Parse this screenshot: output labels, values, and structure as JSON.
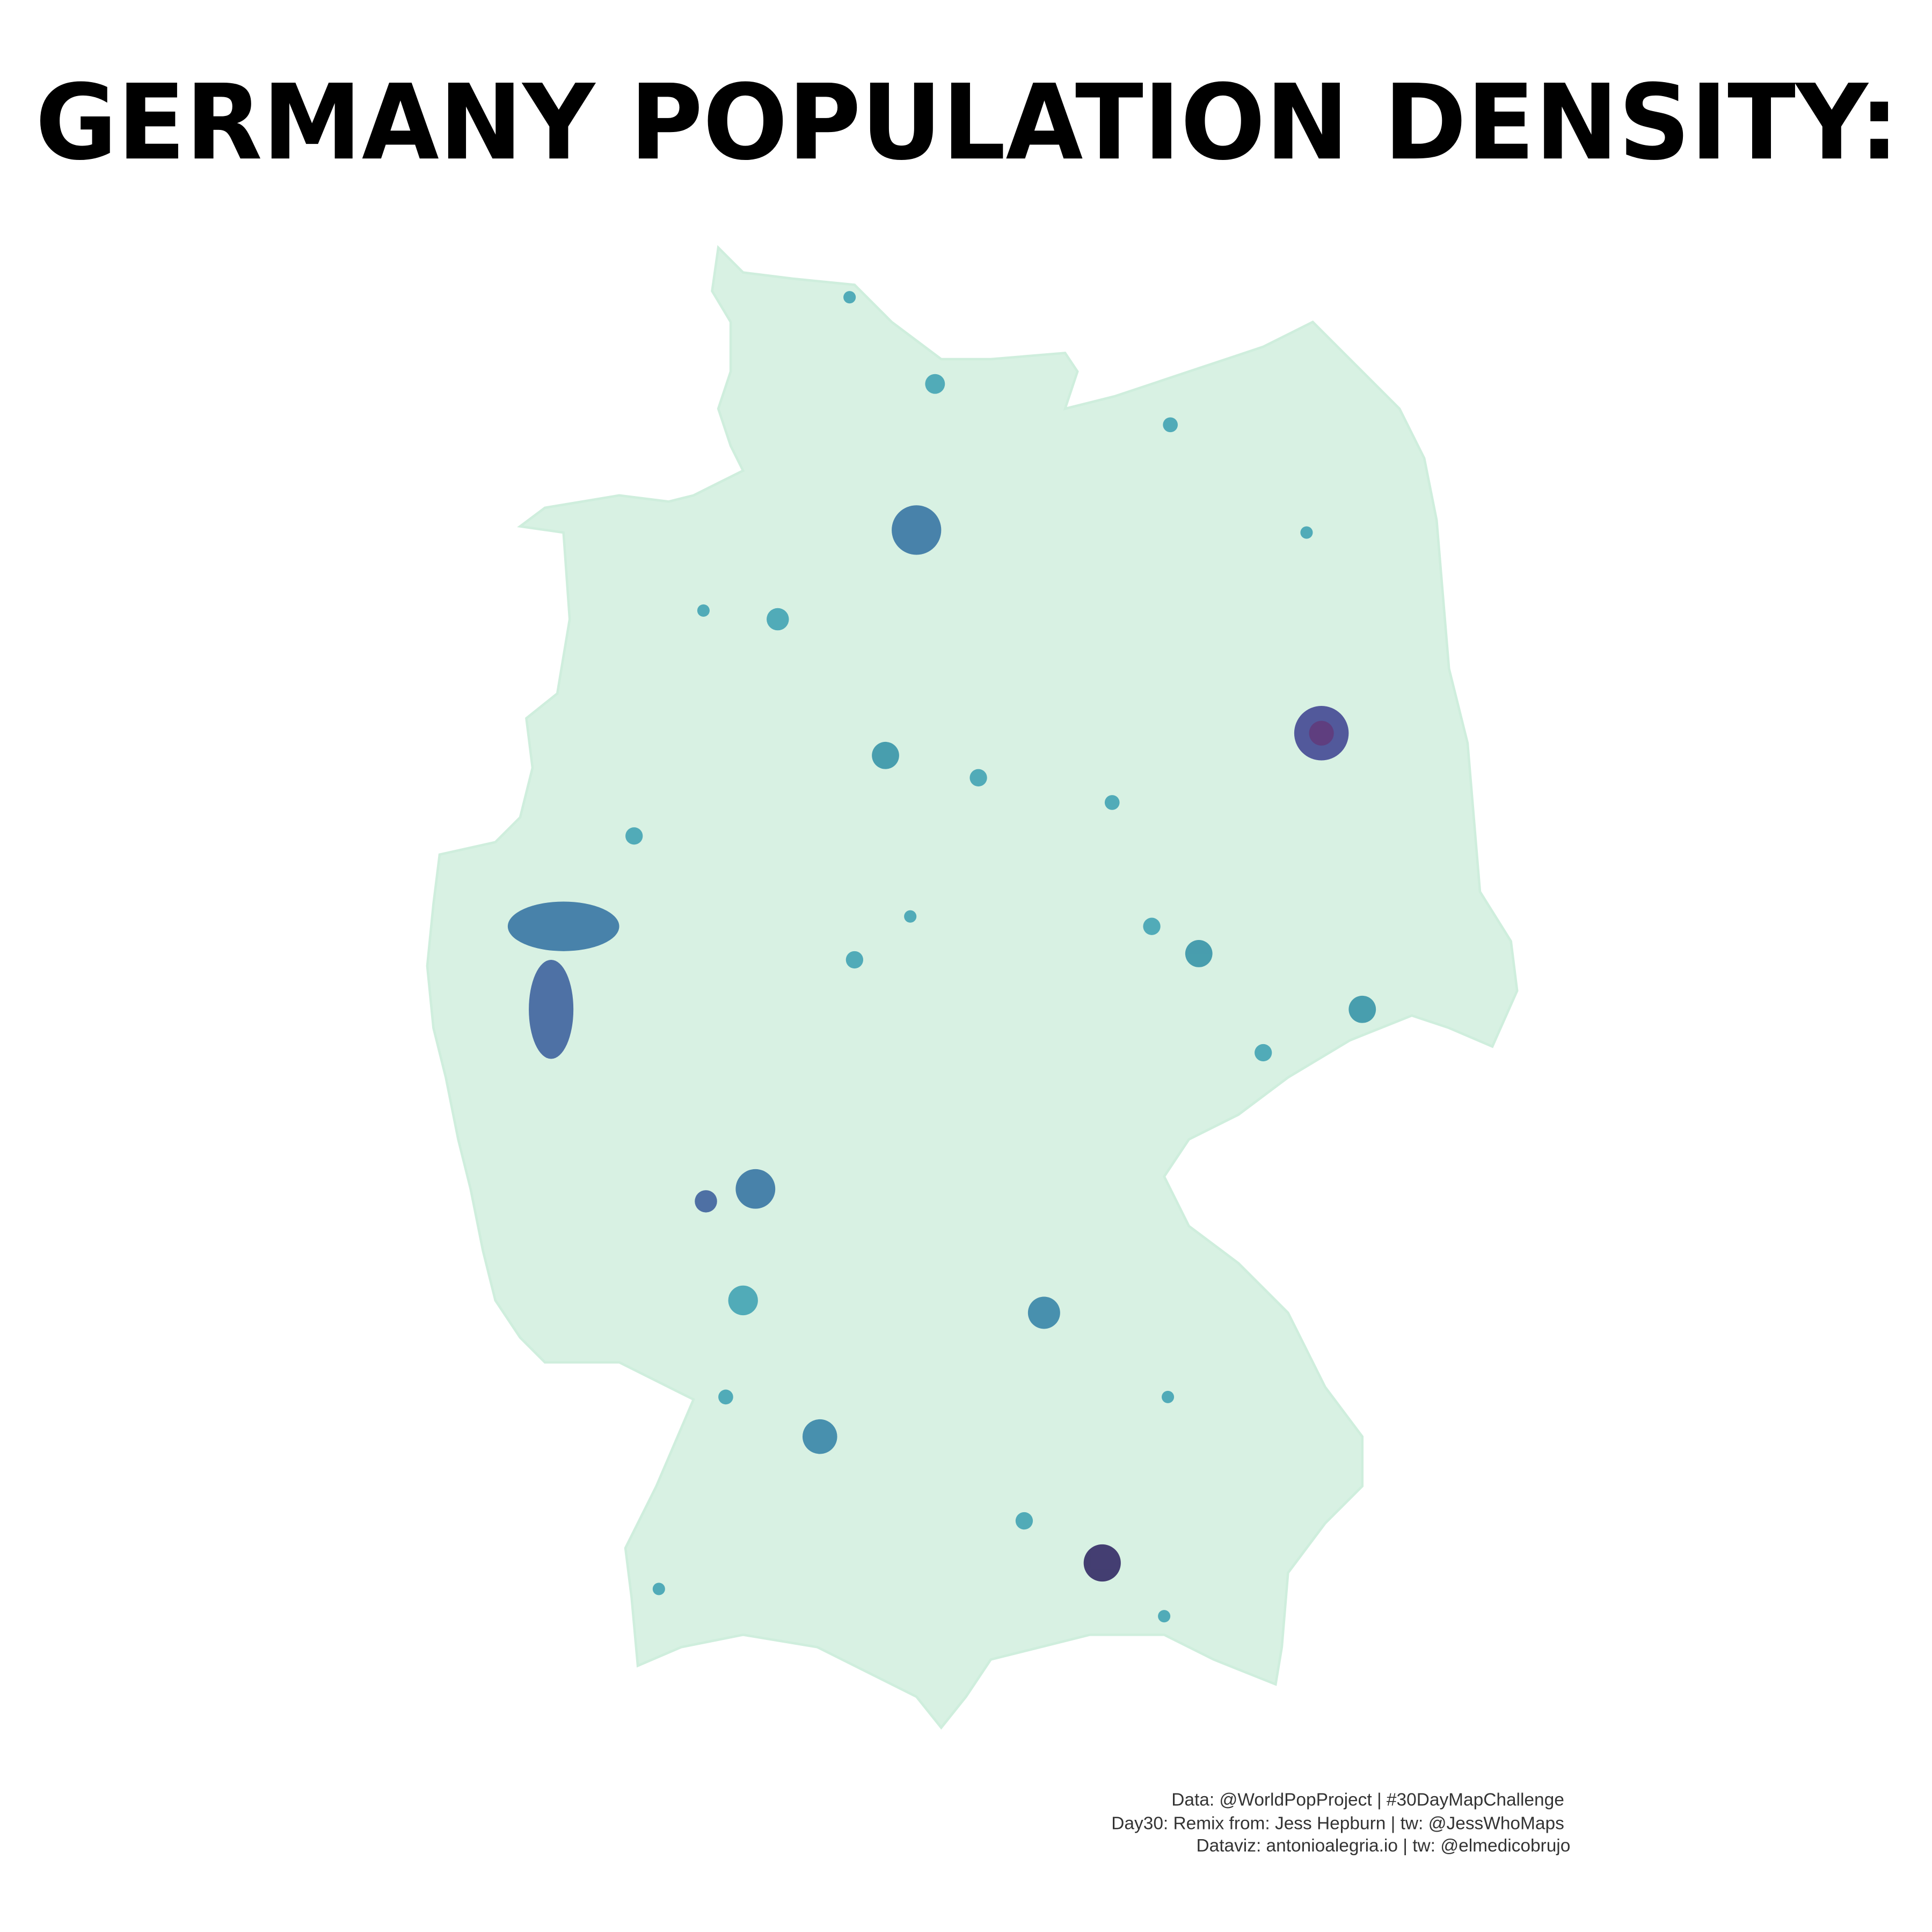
{
  "header": {
    "title": "GERMANY POPULATION DENSITY:"
  },
  "credits": {
    "lines": [
      "Data: @WorldPopProject | #30DayMapChallenge",
      "Day30: Remix from: Jess Hepburn | tw: @JessWhoMaps",
      "Dataviz: antonioalegria.io | tw: @elmedicobrujo"
    ]
  }
}
